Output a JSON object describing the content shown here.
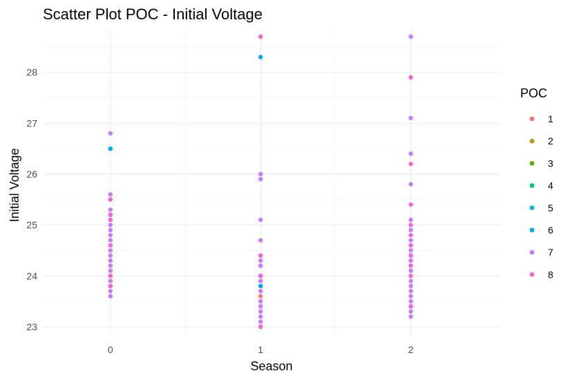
{
  "chart_data": {
    "type": "scatter",
    "title": "Scatter Plot POC - Initial Voltage",
    "xlabel": "Season",
    "ylabel": "Initial Voltage",
    "xlim": [
      -0.45,
      2.6
    ],
    "ylim": [
      22.85,
      28.85
    ],
    "x_ticks": [
      0,
      1,
      2
    ],
    "y_ticks": [
      23,
      24,
      25,
      26,
      27,
      28
    ],
    "grid": true,
    "legend": {
      "title": "POC",
      "position": "right",
      "entries": [
        {
          "label": "1",
          "color": "#F8766D"
        },
        {
          "label": "2",
          "color": "#C49A00"
        },
        {
          "label": "3",
          "color": "#53B400"
        },
        {
          "label": "4",
          "color": "#00C094"
        },
        {
          "label": "5",
          "color": "#00B6EB"
        },
        {
          "label": "6",
          "color": "#00A9FF"
        },
        {
          "label": "7",
          "color": "#C77CFF"
        },
        {
          "label": "8",
          "color": "#FB61D7"
        }
      ]
    },
    "series": [
      {
        "name": "1",
        "color": "#F8766D",
        "points": [
          [
            1,
            23.6
          ],
          [
            2,
            23.4
          ]
        ]
      },
      {
        "name": "6",
        "color": "#00A9FF",
        "points": [
          [
            0,
            26.5
          ],
          [
            1,
            28.3
          ],
          [
            1,
            23.8
          ]
        ]
      },
      {
        "name": "7",
        "color": "#C77CFF",
        "points": [
          [
            0,
            26.8
          ],
          [
            0,
            25.6
          ],
          [
            0,
            25.3
          ],
          [
            0,
            25.0
          ],
          [
            0,
            24.9
          ],
          [
            0,
            24.8
          ],
          [
            0,
            24.7
          ],
          [
            0,
            24.5
          ],
          [
            0,
            24.4
          ],
          [
            0,
            24.3
          ],
          [
            0,
            24.2
          ],
          [
            0,
            24.1
          ],
          [
            0,
            23.9
          ],
          [
            0,
            23.7
          ],
          [
            0,
            23.6
          ],
          [
            1,
            26.0
          ],
          [
            1,
            25.9
          ],
          [
            1,
            25.1
          ],
          [
            1,
            24.7
          ],
          [
            1,
            24.3
          ],
          [
            1,
            24.2
          ],
          [
            1,
            24.0
          ],
          [
            1,
            23.9
          ],
          [
            1,
            23.7
          ],
          [
            1,
            23.5
          ],
          [
            1,
            23.4
          ],
          [
            1,
            23.3
          ],
          [
            1,
            23.2
          ],
          [
            1,
            23.1
          ],
          [
            2,
            28.7
          ],
          [
            2,
            27.1
          ],
          [
            2,
            26.4
          ],
          [
            2,
            25.8
          ],
          [
            2,
            25.1
          ],
          [
            2,
            24.9
          ],
          [
            2,
            24.7
          ],
          [
            2,
            24.5
          ],
          [
            2,
            24.3
          ],
          [
            2,
            24.1
          ],
          [
            2,
            23.9
          ],
          [
            2,
            23.8
          ],
          [
            2,
            23.7
          ],
          [
            2,
            23.6
          ],
          [
            2,
            23.5
          ],
          [
            2,
            23.3
          ],
          [
            2,
            23.2
          ]
        ]
      },
      {
        "name": "8",
        "color": "#FB61D7",
        "points": [
          [
            0,
            25.5
          ],
          [
            0,
            25.2
          ],
          [
            0,
            25.1
          ],
          [
            0,
            24.6
          ],
          [
            0,
            24.0
          ],
          [
            0,
            23.8
          ],
          [
            1,
            28.7
          ],
          [
            1,
            24.4
          ],
          [
            1,
            24.0
          ],
          [
            1,
            23.0
          ],
          [
            2,
            27.9
          ],
          [
            2,
            26.2
          ],
          [
            2,
            25.4
          ],
          [
            2,
            25.0
          ],
          [
            2,
            24.8
          ],
          [
            2,
            24.6
          ],
          [
            2,
            24.4
          ],
          [
            2,
            24.2
          ],
          [
            2,
            24.0
          ],
          [
            2,
            23.4
          ]
        ]
      }
    ]
  }
}
